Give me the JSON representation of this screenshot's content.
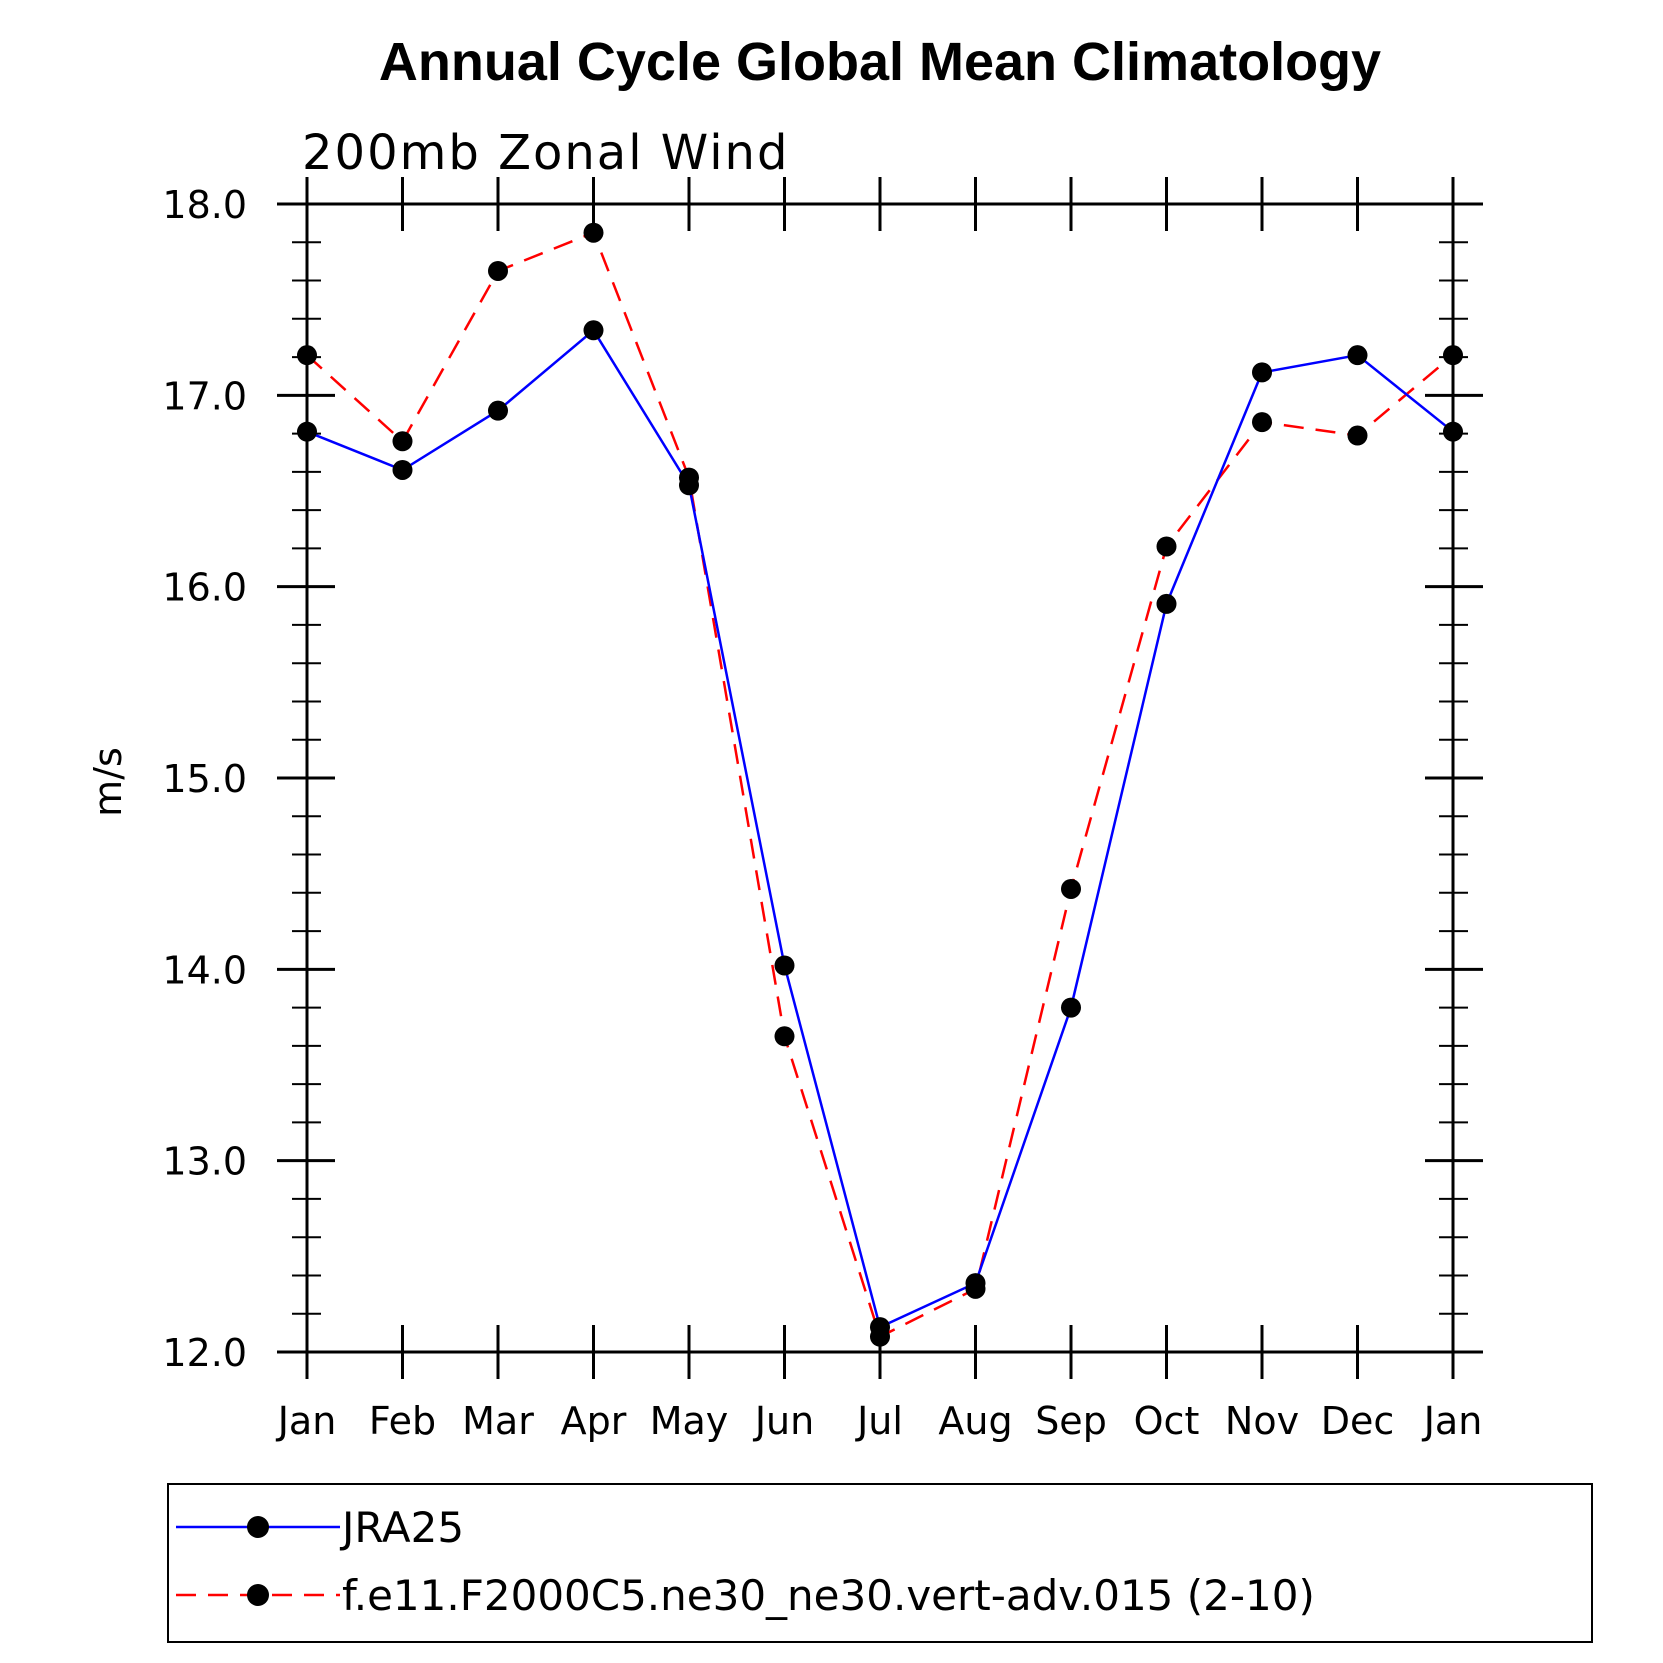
{
  "chart_data": {
    "type": "line",
    "title": "Annual Cycle Global Mean Climatology",
    "subtitle": "200mb Zonal Wind",
    "xlabel": "",
    "ylabel": "m/s",
    "categories": [
      "Jan",
      "Feb",
      "Mar",
      "Apr",
      "May",
      "Jun",
      "Jul",
      "Aug",
      "Sep",
      "Oct",
      "Nov",
      "Dec",
      "Jan"
    ],
    "ylim": [
      12.0,
      18.0
    ],
    "yticks": [
      "12.0",
      "13.0",
      "14.0",
      "15.0",
      "16.0",
      "17.0",
      "18.0"
    ],
    "grid": false,
    "legend_position": "bottom",
    "series": [
      {
        "name": "JRA25",
        "color": "#0000ff",
        "style": "solid",
        "marker": "filled-circle",
        "values": [
          16.81,
          16.61,
          16.92,
          17.34,
          16.53,
          14.02,
          12.13,
          12.36,
          13.8,
          15.91,
          17.12,
          17.21,
          16.81
        ]
      },
      {
        "name": "f.e11.F2000C5.ne30_ne30.vert-adv.015 (2-10)",
        "color": "#ff0000",
        "style": "dashed",
        "marker": "filled-circle",
        "values": [
          17.21,
          16.76,
          17.65,
          17.85,
          16.57,
          13.65,
          12.08,
          12.33,
          14.42,
          16.21,
          16.86,
          16.79,
          17.21
        ]
      }
    ]
  }
}
